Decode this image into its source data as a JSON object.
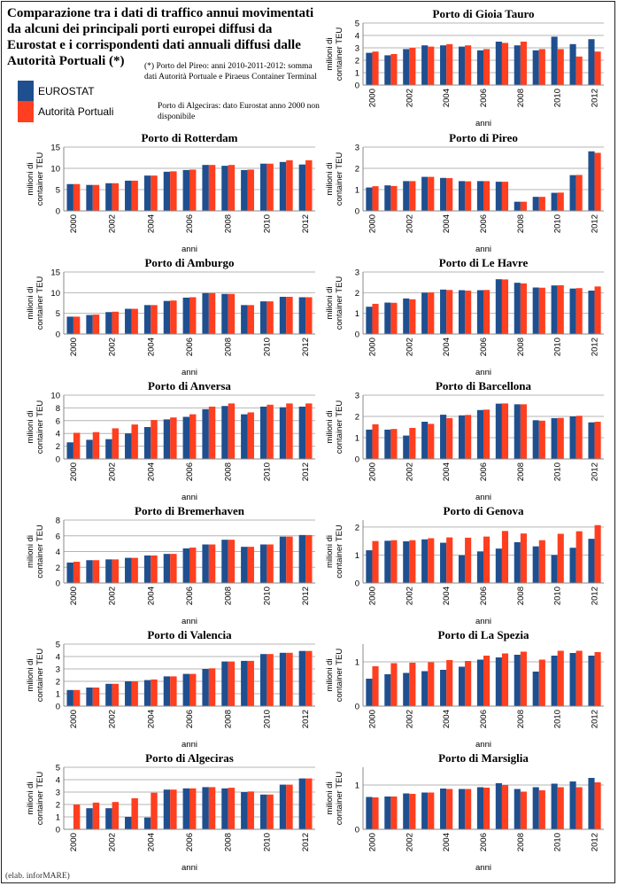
{
  "header": {
    "title": "Comparazione tra i dati di traffico annui movimentati da alcuni dei principali porti europei diffusi da Eurostat e i corrispondenti dati annuali diffusi dalle Autorità Portuali (*)",
    "note_pireo": "(*) Porto del Pireo: anni 2010-2011-2012: somma dati Autorità Portuale e Piraeus Container Terminal",
    "note_algeciras": "Porto di Algeciras: dato Eurostat anno 2000 non disponibile"
  },
  "legend": {
    "eurostat": "EUROSTAT",
    "autorita": "Autorità Portuali"
  },
  "footer": {
    "credit": "(elab. inforMARE)"
  },
  "colors": {
    "eurostat": "#1f4f8f",
    "autorita": "#ff3f1f",
    "grid": "#b4b4b4"
  },
  "chart_data": [
    {
      "type": "bar",
      "title": "Porto di Gioia Tauro",
      "xlabel": "anni",
      "ylabel": "milioni di container TEU",
      "ylim": [
        0,
        5
      ],
      "yticks": [
        0,
        1,
        2,
        3,
        4,
        5
      ],
      "categories": [
        "2000",
        "2001",
        "2002",
        "2003",
        "2004",
        "2005",
        "2006",
        "2007",
        "2008",
        "2009",
        "2010",
        "2011",
        "2012"
      ],
      "xtick_labels": [
        "2000",
        "2002",
        "2004",
        "2006",
        "2008",
        "2010",
        "2012"
      ],
      "series": [
        {
          "name": "EUROSTAT",
          "values": [
            2.6,
            2.4,
            2.9,
            3.2,
            3.2,
            3.1,
            2.8,
            3.5,
            3.2,
            2.8,
            3.9,
            3.3,
            3.7
          ]
        },
        {
          "name": "Autorità Portuali",
          "values": [
            2.7,
            2.5,
            3.0,
            3.1,
            3.3,
            3.2,
            2.9,
            3.4,
            3.5,
            2.9,
            2.9,
            2.3,
            2.7
          ]
        }
      ]
    },
    {
      "type": "bar",
      "title": "Porto di Rotterdam",
      "xlabel": "anni",
      "ylabel": "milioni di container TEU",
      "ylim": [
        0,
        15
      ],
      "yticks": [
        0,
        5,
        10,
        15
      ],
      "categories": [
        "2000",
        "2001",
        "2002",
        "2003",
        "2004",
        "2005",
        "2006",
        "2007",
        "2008",
        "2009",
        "2010",
        "2011",
        "2012"
      ],
      "xtick_labels": [
        "2000",
        "2002",
        "2004",
        "2006",
        "2008",
        "2010",
        "2012"
      ],
      "series": [
        {
          "name": "EUROSTAT",
          "values": [
            6.3,
            6.1,
            6.5,
            7.1,
            8.3,
            9.2,
            9.6,
            10.8,
            10.6,
            9.6,
            11.1,
            11.5,
            10.9
          ]
        },
        {
          "name": "Autorità Portuali",
          "values": [
            6.3,
            6.1,
            6.5,
            7.1,
            8.3,
            9.3,
            9.7,
            10.8,
            10.8,
            9.7,
            11.1,
            11.9,
            11.9
          ]
        }
      ]
    },
    {
      "type": "bar",
      "title": "Porto di Pireo",
      "xlabel": "anni",
      "ylabel": "milioni di container TEU",
      "ylim": [
        0,
        3
      ],
      "yticks": [
        0,
        1,
        2,
        3
      ],
      "categories": [
        "2000",
        "2001",
        "2002",
        "2003",
        "2004",
        "2005",
        "2006",
        "2007",
        "2008",
        "2009",
        "2010",
        "2011",
        "2012"
      ],
      "xtick_labels": [
        "2000",
        "2002",
        "2004",
        "2006",
        "2008",
        "2010",
        "2012"
      ],
      "series": [
        {
          "name": "EUROSTAT",
          "values": [
            1.1,
            1.2,
            1.4,
            1.6,
            1.55,
            1.4,
            1.4,
            1.37,
            0.43,
            0.66,
            0.85,
            1.68,
            2.8
          ]
        },
        {
          "name": "Autorità Portuali",
          "values": [
            1.16,
            1.17,
            1.4,
            1.6,
            1.54,
            1.39,
            1.4,
            1.37,
            0.43,
            0.66,
            0.86,
            1.69,
            2.73
          ]
        }
      ]
    },
    {
      "type": "bar",
      "title": "Porto di Amburgo",
      "xlabel": "anni",
      "ylabel": "milioni di container TEU",
      "ylim": [
        0,
        15
      ],
      "yticks": [
        0,
        5,
        10,
        15
      ],
      "categories": [
        "2000",
        "2001",
        "2002",
        "2003",
        "2004",
        "2005",
        "2006",
        "2007",
        "2008",
        "2009",
        "2010",
        "2011",
        "2012"
      ],
      "xtick_labels": [
        "2000",
        "2002",
        "2004",
        "2006",
        "2008",
        "2010",
        "2012"
      ],
      "series": [
        {
          "name": "EUROSTAT",
          "values": [
            4.2,
            4.6,
            5.3,
            6.1,
            7.0,
            8.0,
            8.8,
            9.9,
            9.7,
            7.0,
            7.9,
            9.0,
            8.9
          ]
        },
        {
          "name": "Autorità Portuali",
          "values": [
            4.2,
            4.7,
            5.4,
            6.1,
            7.0,
            8.1,
            8.9,
            9.9,
            9.7,
            7.0,
            7.9,
            9.0,
            8.9
          ]
        }
      ]
    },
    {
      "type": "bar",
      "title": "Porto di Le Havre",
      "xlabel": "anni",
      "ylabel": "milioni di container TEU",
      "ylim": [
        0,
        3
      ],
      "yticks": [
        0,
        1,
        2,
        3
      ],
      "categories": [
        "2000",
        "2001",
        "2002",
        "2003",
        "2004",
        "2005",
        "2006",
        "2007",
        "2008",
        "2009",
        "2010",
        "2011",
        "2012"
      ],
      "xtick_labels": [
        "2000",
        "2002",
        "2004",
        "2006",
        "2008",
        "2010",
        "2012"
      ],
      "series": [
        {
          "name": "EUROSTAT",
          "values": [
            1.32,
            1.52,
            1.72,
            2.0,
            2.15,
            2.12,
            2.12,
            2.65,
            2.48,
            2.25,
            2.35,
            2.2,
            2.1
          ]
        },
        {
          "name": "Autorità Portuali",
          "values": [
            1.46,
            1.51,
            1.68,
            2.01,
            2.13,
            2.1,
            2.13,
            2.64,
            2.45,
            2.24,
            2.36,
            2.22,
            2.3
          ]
        }
      ]
    },
    {
      "type": "bar",
      "title": "Porto di Anversa",
      "xlabel": "anni",
      "ylabel": "milioni di container TEU",
      "ylim": [
        0,
        10
      ],
      "yticks": [
        0,
        2,
        4,
        6,
        8,
        10
      ],
      "categories": [
        "2000",
        "2001",
        "2002",
        "2003",
        "2004",
        "2005",
        "2006",
        "2007",
        "2008",
        "2009",
        "2010",
        "2011",
        "2012"
      ],
      "xtick_labels": [
        "2000",
        "2002",
        "2004",
        "2006",
        "2008",
        "2010",
        "2012"
      ],
      "series": [
        {
          "name": "EUROSTAT",
          "values": [
            2.6,
            3.0,
            3.1,
            4.0,
            5.0,
            6.2,
            6.6,
            7.8,
            8.3,
            7.0,
            8.2,
            8.1,
            8.2
          ]
        },
        {
          "name": "Autorità Portuali",
          "values": [
            4.1,
            4.2,
            4.8,
            5.4,
            6.1,
            6.5,
            7.0,
            8.2,
            8.7,
            7.3,
            8.5,
            8.7,
            8.7
          ]
        }
      ]
    },
    {
      "type": "bar",
      "title": "Porto di Barcellona",
      "xlabel": "anni",
      "ylabel": "milioni di container TEU",
      "ylim": [
        0,
        3
      ],
      "yticks": [
        0,
        1,
        2,
        3
      ],
      "categories": [
        "2000",
        "2001",
        "2002",
        "2003",
        "2004",
        "2005",
        "2006",
        "2007",
        "2008",
        "2009",
        "2010",
        "2011",
        "2012"
      ],
      "xtick_labels": [
        "2000",
        "2002",
        "2004",
        "2006",
        "2008",
        "2010",
        "2012"
      ],
      "series": [
        {
          "name": "EUROSTAT",
          "values": [
            1.38,
            1.38,
            1.1,
            1.75,
            2.08,
            2.05,
            2.3,
            2.6,
            2.57,
            1.82,
            1.92,
            2.0,
            1.72
          ]
        },
        {
          "name": "Autorità Portuali",
          "values": [
            1.63,
            1.41,
            1.46,
            1.65,
            1.92,
            2.07,
            2.32,
            2.61,
            2.57,
            1.8,
            1.93,
            2.03,
            1.75
          ]
        }
      ]
    },
    {
      "type": "bar",
      "title": "Porto di Bremerhaven",
      "xlabel": "anni",
      "ylabel": "milioni di container TEU",
      "ylim": [
        0,
        8
      ],
      "yticks": [
        0,
        2,
        4,
        6,
        8
      ],
      "categories": [
        "2000",
        "2001",
        "2002",
        "2003",
        "2004",
        "2005",
        "2006",
        "2007",
        "2008",
        "2009",
        "2010",
        "2011",
        "2012"
      ],
      "xtick_labels": [
        "2000",
        "2002",
        "2004",
        "2006",
        "2008",
        "2010",
        "2012"
      ],
      "series": [
        {
          "name": "EUROSTAT",
          "values": [
            2.6,
            2.9,
            3.0,
            3.2,
            3.5,
            3.7,
            4.4,
            4.9,
            5.5,
            4.6,
            4.9,
            5.9,
            6.1
          ]
        },
        {
          "name": "Autorità Portuali",
          "values": [
            2.7,
            2.9,
            3.0,
            3.2,
            3.5,
            3.7,
            4.5,
            4.9,
            5.5,
            4.6,
            4.9,
            5.9,
            6.1
          ]
        }
      ]
    },
    {
      "type": "bar",
      "title": "Porto di Genova",
      "xlabel": "anni",
      "ylabel": "milioni di container TEU",
      "ylim": [
        0,
        2.25
      ],
      "yticks": [
        0,
        1,
        2
      ],
      "categories": [
        "2000",
        "2001",
        "2002",
        "2003",
        "2004",
        "2005",
        "2006",
        "2007",
        "2008",
        "2009",
        "2010",
        "2011",
        "2012"
      ],
      "xtick_labels": [
        "2000",
        "2002",
        "2004",
        "2006",
        "2008",
        "2010",
        "2012"
      ],
      "series": [
        {
          "name": "EUROSTAT",
          "values": [
            1.17,
            1.51,
            1.49,
            1.56,
            1.44,
            0.99,
            1.13,
            1.23,
            1.46,
            1.31,
            1.0,
            1.26,
            1.58
          ]
        },
        {
          "name": "Autorità Portuali",
          "values": [
            1.5,
            1.53,
            1.53,
            1.6,
            1.63,
            1.62,
            1.66,
            1.86,
            1.77,
            1.53,
            1.76,
            1.85,
            2.07
          ]
        }
      ]
    },
    {
      "type": "bar",
      "title": "Porto di Valencia",
      "xlabel": "anni",
      "ylabel": "milioni di container TEU",
      "ylim": [
        0,
        5
      ],
      "yticks": [
        0,
        1,
        2,
        3,
        4,
        5
      ],
      "categories": [
        "2000",
        "2001",
        "2002",
        "2003",
        "2004",
        "2005",
        "2006",
        "2007",
        "2008",
        "2009",
        "2010",
        "2011",
        "2012"
      ],
      "xtick_labels": [
        "2000",
        "2002",
        "2004",
        "2006",
        "2008",
        "2010",
        "2012"
      ],
      "series": [
        {
          "name": "EUROSTAT",
          "values": [
            1.3,
            1.5,
            1.8,
            2.0,
            2.1,
            2.4,
            2.6,
            3.0,
            3.6,
            3.65,
            4.2,
            4.3,
            4.45
          ]
        },
        {
          "name": "Autorità Portuali",
          "values": [
            1.3,
            1.5,
            1.8,
            2.0,
            2.15,
            2.4,
            2.6,
            3.05,
            3.6,
            3.65,
            4.2,
            4.3,
            4.45
          ]
        }
      ]
    },
    {
      "type": "bar",
      "title": "Porto di La Spezia",
      "xlabel": "anni",
      "ylabel": "milioni di container TEU",
      "ylim": [
        0,
        1.4
      ],
      "yticks": [
        0,
        1
      ],
      "categories": [
        "2000",
        "2001",
        "2002",
        "2003",
        "2004",
        "2005",
        "2006",
        "2007",
        "2008",
        "2009",
        "2010",
        "2011",
        "2012"
      ],
      "xtick_labels": [
        "2000",
        "2002",
        "2004",
        "2006",
        "2008",
        "2010",
        "2012"
      ],
      "series": [
        {
          "name": "EUROSTAT",
          "values": [
            0.62,
            0.72,
            0.75,
            0.79,
            0.82,
            0.89,
            1.05,
            1.1,
            1.16,
            0.78,
            1.14,
            1.2,
            1.14
          ]
        },
        {
          "name": "Autorità Portuali",
          "values": [
            0.9,
            0.97,
            0.98,
            0.99,
            1.04,
            1.02,
            1.14,
            1.19,
            1.23,
            1.05,
            1.25,
            1.25,
            1.22
          ]
        }
      ]
    },
    {
      "type": "bar",
      "title": "Porto di Algeciras",
      "xlabel": "anni",
      "ylabel": "milioni di container TEU",
      "ylim": [
        0,
        5
      ],
      "yticks": [
        0,
        1,
        2,
        3,
        4,
        5
      ],
      "categories": [
        "2000",
        "2001",
        "2002",
        "2003",
        "2004",
        "2005",
        "2006",
        "2007",
        "2008",
        "2009",
        "2010",
        "2011",
        "2012"
      ],
      "xtick_labels": [
        "2000",
        "2002",
        "2004",
        "2006",
        "2008",
        "2010",
        "2012"
      ],
      "series": [
        {
          "name": "EUROSTAT",
          "values": [
            null,
            1.7,
            1.7,
            1.0,
            0.95,
            3.2,
            3.3,
            3.4,
            3.3,
            3.0,
            2.8,
            3.6,
            4.1
          ]
        },
        {
          "name": "Autorità Portuali",
          "values": [
            2.0,
            2.15,
            2.2,
            2.5,
            2.95,
            3.2,
            3.3,
            3.4,
            3.35,
            3.05,
            2.8,
            3.6,
            4.1
          ]
        }
      ]
    },
    {
      "type": "bar",
      "title": "Porto di Marsiglia",
      "xlabel": "anni",
      "ylabel": "milioni di container TEU",
      "ylim": [
        0,
        1.4
      ],
      "yticks": [
        0,
        1
      ],
      "categories": [
        "2000",
        "2001",
        "2002",
        "2003",
        "2004",
        "2005",
        "2006",
        "2007",
        "2008",
        "2009",
        "2010",
        "2011",
        "2012"
      ],
      "xtick_labels": [
        "2000",
        "2002",
        "2004",
        "2006",
        "2008",
        "2010",
        "2012"
      ],
      "series": [
        {
          "name": "EUROSTAT",
          "values": [
            0.73,
            0.74,
            0.81,
            0.83,
            0.92,
            0.91,
            0.95,
            1.04,
            0.91,
            0.95,
            1.03,
            1.08,
            1.16
          ]
        },
        {
          "name": "Autorità Portuali",
          "values": [
            0.72,
            0.74,
            0.8,
            0.83,
            0.91,
            0.91,
            0.94,
            1.0,
            0.85,
            0.88,
            0.95,
            0.95,
            1.06
          ]
        }
      ]
    }
  ]
}
